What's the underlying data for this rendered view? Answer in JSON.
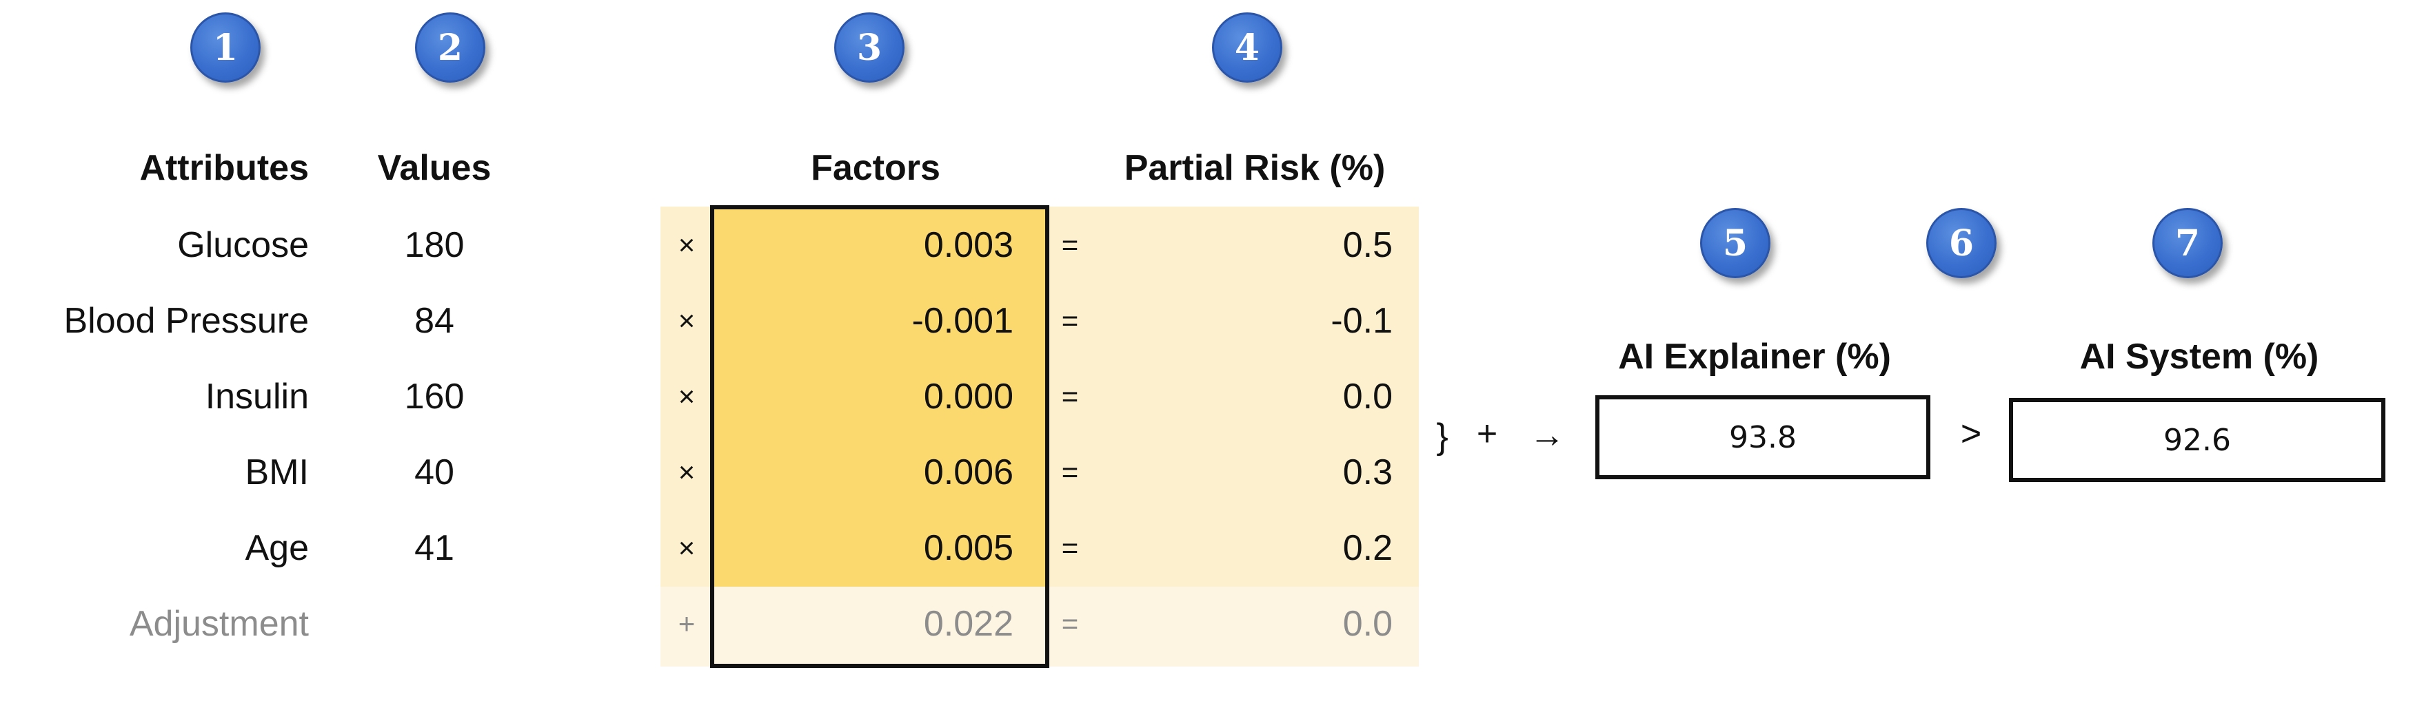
{
  "badges": [
    "1",
    "2",
    "3",
    "4",
    "5",
    "6",
    "7"
  ],
  "headers": {
    "attributes": "Attributes",
    "values": "Values",
    "factors": "Factors",
    "partial_risk": "Partial Risk (%)",
    "ai_explainer": "AI Explainer (%)",
    "ai_system": "AI System (%)"
  },
  "rows": [
    {
      "attribute": "Glucose",
      "value": "180",
      "op": "×",
      "factor": "0.003",
      "eq": "=",
      "risk": "0.5"
    },
    {
      "attribute": "Blood Pressure",
      "value": "84",
      "op": "×",
      "factor": "-0.001",
      "eq": "=",
      "risk": "-0.1"
    },
    {
      "attribute": "Insulin",
      "value": "160",
      "op": "×",
      "factor": "0.000",
      "eq": "=",
      "risk": "0.0"
    },
    {
      "attribute": "BMI",
      "value": "40",
      "op": "×",
      "factor": "0.006",
      "eq": "=",
      "risk": "0.3"
    },
    {
      "attribute": "Age",
      "value": "41",
      "op": "×",
      "factor": "0.005",
      "eq": "=",
      "risk": "0.2"
    },
    {
      "attribute": "Adjustment",
      "value": "",
      "op": "+",
      "factor": "0.022",
      "eq": "=",
      "risk": "0.0"
    }
  ],
  "connector": {
    "brace": "}",
    "plus": "+",
    "arrow": "→",
    "greater": ">"
  },
  "outputs": {
    "ai_explainer_value": "93.8",
    "ai_system_value": "92.6"
  },
  "colors": {
    "badge": "#3a6fcf",
    "factor_fill": "#fcd96e",
    "row_fill": "#fdf0cf",
    "adjustment_fill": "#fdf5e2",
    "adjustment_text": "#8c8c8c"
  }
}
